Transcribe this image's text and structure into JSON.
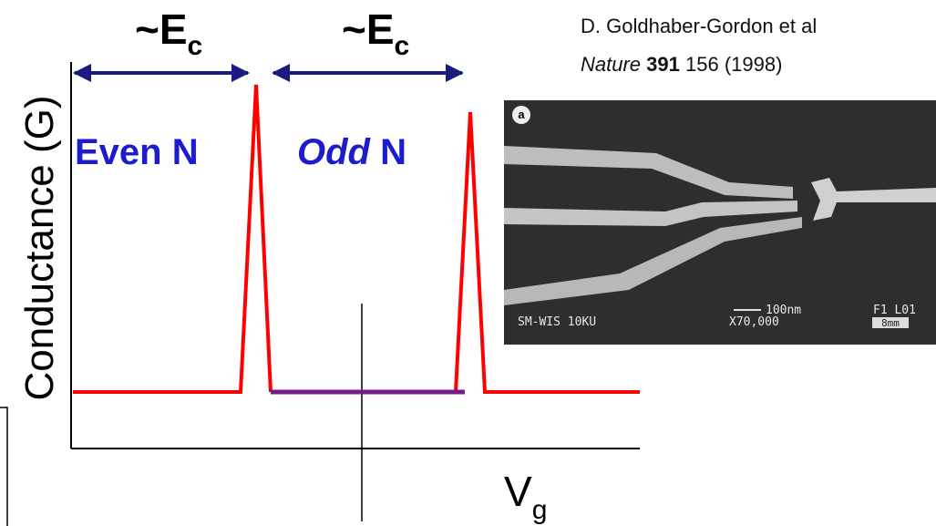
{
  "energy_labels": [
    {
      "main": "~E",
      "sub": "c"
    },
    {
      "main": "~E",
      "sub": "c"
    }
  ],
  "citation": {
    "authors": "D. Goldhaber-Gordon et al",
    "journal": "Nature",
    "volume": "391",
    "rest": "156 (1998)"
  },
  "axis": {
    "y_label": "Conductance (G)",
    "x_label": {
      "main": "V",
      "sub": "g"
    }
  },
  "regions": {
    "even": {
      "word": "Even",
      "n": "N"
    },
    "odd": {
      "word": "Odd",
      "n": "N"
    }
  },
  "micrograph": {
    "panel": "a",
    "caption": "SM-WIS  10KU",
    "scale": "100nm",
    "magnification": "X70,000",
    "code": "F1  L01",
    "bar": "8mm"
  }
}
